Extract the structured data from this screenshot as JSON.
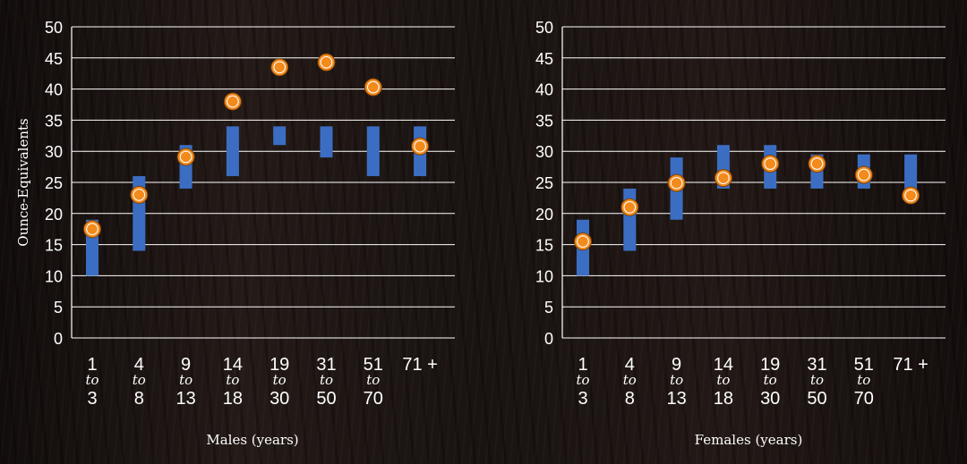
{
  "colors": {
    "range_bar": "#3b6ec2",
    "marker_fill": "#f28a1c",
    "marker_ring": "#ffffff",
    "marker_outline": "#7a3f08",
    "grid": "#ffffff",
    "text": "#ffffff"
  },
  "chart_data": [
    {
      "type": "range-bar-with-points",
      "panel": "males",
      "xlabel": "Males (years)",
      "ylabel": "Ounce-Equivalents",
      "ylim": [
        0,
        50
      ],
      "yticks": [
        "0",
        "5",
        "10",
        "15",
        "20",
        "25",
        "30",
        "35",
        "40",
        "45",
        "50"
      ],
      "categories": [
        {
          "top": "1",
          "mid": "to",
          "bottom": "3"
        },
        {
          "top": "4",
          "mid": "to",
          "bottom": "8"
        },
        {
          "top": "9",
          "mid": "to",
          "bottom": "13"
        },
        {
          "top": "14",
          "mid": "to",
          "bottom": "18"
        },
        {
          "top": "19",
          "mid": "to",
          "bottom": "30"
        },
        {
          "top": "31",
          "mid": "to",
          "bottom": "50"
        },
        {
          "top": "51",
          "mid": "to",
          "bottom": "70"
        },
        {
          "top": "71 +",
          "mid": "",
          "bottom": ""
        }
      ],
      "ranges": [
        [
          10,
          19
        ],
        [
          14,
          26
        ],
        [
          24,
          31
        ],
        [
          26,
          34
        ],
        [
          31,
          34
        ],
        [
          29,
          34
        ],
        [
          26,
          34
        ],
        [
          26,
          34
        ]
      ],
      "points": [
        17.5,
        23,
        29.1,
        38,
        43.5,
        44.3,
        40.3,
        30.8
      ]
    },
    {
      "type": "range-bar-with-points",
      "panel": "females",
      "xlabel": "Females (years)",
      "ylabel": "",
      "ylim": [
        0,
        50
      ],
      "yticks": [
        "0",
        "5",
        "10",
        "15",
        "20",
        "25",
        "30",
        "35",
        "40",
        "45",
        "50"
      ],
      "categories": [
        {
          "top": "1",
          "mid": "to",
          "bottom": "3"
        },
        {
          "top": "4",
          "mid": "to",
          "bottom": "8"
        },
        {
          "top": "9",
          "mid": "to",
          "bottom": "13"
        },
        {
          "top": "14",
          "mid": "to",
          "bottom": "18"
        },
        {
          "top": "19",
          "mid": "to",
          "bottom": "30"
        },
        {
          "top": "31",
          "mid": "to",
          "bottom": "50"
        },
        {
          "top": "51",
          "mid": "to",
          "bottom": "70"
        },
        {
          "top": "71 +",
          "mid": "",
          "bottom": ""
        }
      ],
      "ranges": [
        [
          10,
          19
        ],
        [
          14,
          24
        ],
        [
          19,
          29
        ],
        [
          24,
          31
        ],
        [
          24,
          31
        ],
        [
          24,
          29.5
        ],
        [
          24,
          29.5
        ],
        [
          22,
          29.5
        ]
      ],
      "points": [
        15.5,
        21,
        24.9,
        25.7,
        28,
        28,
        26.2,
        22.9
      ]
    }
  ]
}
